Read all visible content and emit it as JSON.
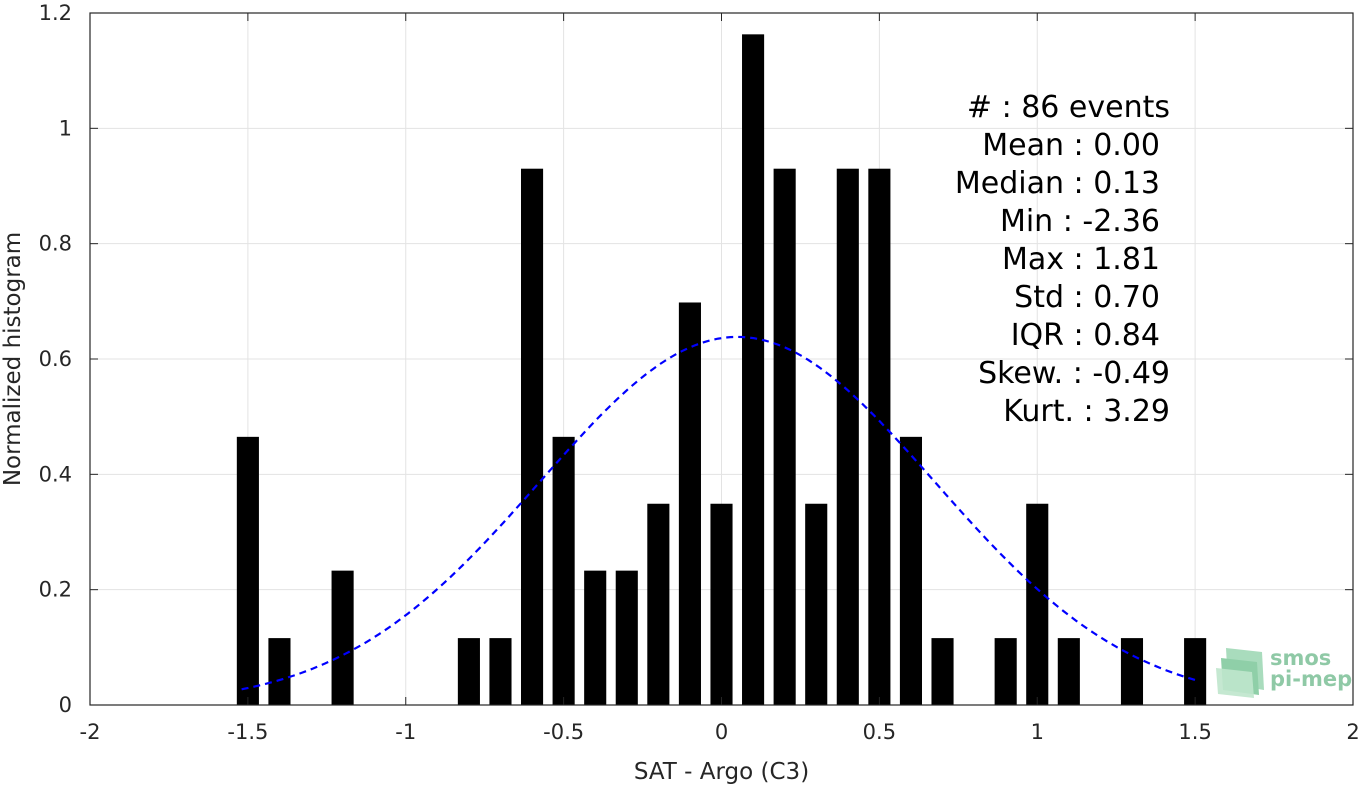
{
  "chart_data": {
    "type": "bar",
    "xlabel": "SAT - Argo (C3)",
    "ylabel": "Normalized histogram",
    "xlim": [
      -2,
      2
    ],
    "ylim": [
      0,
      1.2
    ],
    "xticks": [
      "-2",
      "-1.5",
      "-1",
      "-0.5",
      "0",
      "0.5",
      "1",
      "1.5",
      "2"
    ],
    "yticks": [
      "0",
      "0.2",
      "0.4",
      "0.6",
      "0.8",
      "1",
      "1.2"
    ],
    "grid": true,
    "bin_width": 0.1,
    "bars": {
      "x": [
        -1.5,
        -1.4,
        -1.2,
        -0.8,
        -0.7,
        -0.6,
        -0.5,
        -0.4,
        -0.3,
        -0.2,
        -0.1,
        0.0,
        0.1,
        0.2,
        0.3,
        0.4,
        0.5,
        0.6,
        0.7,
        0.9,
        1.0,
        1.1,
        1.3,
        1.5
      ],
      "values": [
        0.465,
        0.116,
        0.233,
        0.116,
        0.116,
        0.93,
        0.465,
        0.233,
        0.233,
        0.349,
        0.698,
        0.349,
        1.163,
        0.93,
        0.349,
        0.93,
        0.93,
        0.465,
        0.116,
        0.116,
        0.349,
        0.116,
        0.116,
        0.116
      ],
      "color": "#000000"
    },
    "fit_curve": {
      "style": "dashed",
      "color": "#0000ff",
      "mean": 0.05,
      "std": 0.625,
      "x_range": [
        -1.52,
        1.5
      ]
    },
    "stats": [
      {
        "label": "#  : 86 events",
        "align": "x1170"
      },
      {
        "label": "Mean : 0.00",
        "align": "x1160"
      },
      {
        "label": "Median : 0.13",
        "align": "x1160"
      },
      {
        "label": "Min : -2.36",
        "align": "x1160"
      },
      {
        "label": "Max : 1.81",
        "align": "x1160"
      },
      {
        "label": "Std : 0.70",
        "align": "x1160"
      },
      {
        "label": "IQR : 0.84",
        "align": "x1160"
      },
      {
        "label": "Skew. : -0.49",
        "align": "x1170"
      },
      {
        "label": "Kurt. : 3.29",
        "align": "x1170"
      }
    ]
  },
  "logo": {
    "line1": "smos",
    "line2": "pi-mep"
  }
}
